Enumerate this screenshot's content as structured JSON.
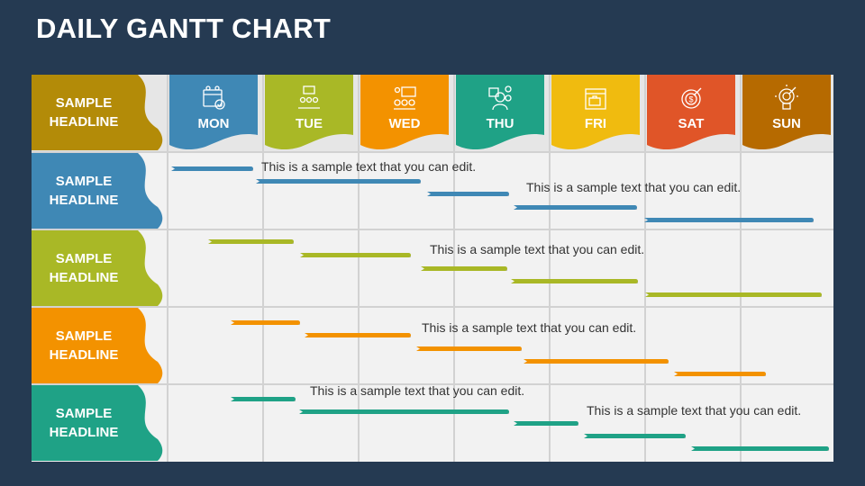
{
  "title": "DAILY GANTT CHART",
  "corner_header": {
    "label": "SAMPLE HEADLINE",
    "color": "#b38b08"
  },
  "days": [
    {
      "label": "MON",
      "color": "#3f88b5",
      "icon": "calendar-check-icon"
    },
    {
      "label": "TUE",
      "color": "#a9b826",
      "icon": "meeting-presentation-icon"
    },
    {
      "label": "WED",
      "color": "#f39200",
      "icon": "team-board-icon"
    },
    {
      "label": "THU",
      "color": "#1fa286",
      "icon": "person-schedule-icon"
    },
    {
      "label": "FRI",
      "color": "#f0bb0f",
      "icon": "briefcase-calendar-icon"
    },
    {
      "label": "SAT",
      "color": "#e05528",
      "icon": "target-dollar-icon"
    },
    {
      "label": "SUN",
      "color": "#b66a00",
      "icon": "lightbulb-target-icon"
    }
  ],
  "rows": [
    {
      "label": "SAMPLE HEADLINE",
      "color": "#3f88b5",
      "notes": [
        "This is a sample text that you can edit.",
        "This is a sample text that you can edit."
      ]
    },
    {
      "label": "SAMPLE HEADLINE",
      "color": "#a9b826",
      "notes": [
        "This is a sample text that you can edit."
      ]
    },
    {
      "label": "SAMPLE HEADLINE",
      "color": "#f39200",
      "notes": [
        "This is a sample text that you can edit."
      ]
    },
    {
      "label": "SAMPLE HEADLINE",
      "color": "#1fa286",
      "notes": [
        "This is a sample text that you can edit.",
        "This is a sample text that you can edit."
      ]
    }
  ]
}
